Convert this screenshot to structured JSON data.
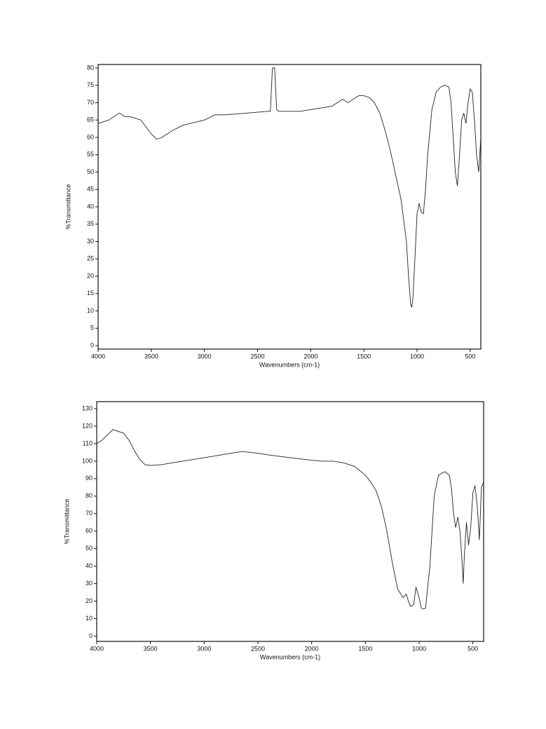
{
  "chart_data": [
    {
      "type": "line",
      "x_label": "Wavenumbers (cm-1)",
      "y_label": "%Transmittance",
      "xlim": [
        4000,
        400
      ],
      "ylim": [
        -1,
        81
      ],
      "xticks": [
        4000,
        3500,
        3000,
        2500,
        2000,
        1500,
        1000,
        500
      ],
      "yticks": [
        0,
        5,
        10,
        15,
        20,
        25,
        30,
        35,
        40,
        45,
        50,
        55,
        60,
        65,
        70,
        75,
        80
      ],
      "color": "#222222",
      "x": [
        4000,
        3900,
        3850,
        3800,
        3750,
        3700,
        3650,
        3600,
        3550,
        3500,
        3450,
        3400,
        3300,
        3200,
        3000,
        2900,
        2800,
        2600,
        2400,
        2380,
        2360,
        2340,
        2320,
        2300,
        2100,
        2000,
        1900,
        1800,
        1700,
        1650,
        1600,
        1550,
        1500,
        1450,
        1400,
        1350,
        1300,
        1250,
        1200,
        1150,
        1100,
        1080,
        1060,
        1050,
        1040,
        1020,
        1000,
        980,
        960,
        940,
        920,
        900,
        860,
        820,
        780,
        740,
        700,
        680,
        660,
        640,
        620,
        600,
        580,
        560,
        540,
        520,
        500,
        480,
        460,
        440,
        420,
        400
      ],
      "values": [
        64,
        65,
        66,
        67,
        66,
        66,
        65.5,
        65,
        63,
        61,
        59.5,
        60,
        62,
        63.5,
        65,
        66.5,
        66.5,
        67,
        67.5,
        67.5,
        80,
        80,
        68,
        67.5,
        67.5,
        68,
        68.5,
        69,
        71,
        70,
        71,
        72,
        72,
        71.5,
        70,
        67,
        62,
        56,
        49,
        42,
        30,
        20,
        12,
        11,
        13,
        25,
        38,
        41,
        38.5,
        38,
        45,
        55,
        68,
        73,
        74.5,
        75,
        74.5,
        70,
        60,
        50,
        46,
        55,
        65,
        67,
        64,
        70,
        74,
        73,
        65,
        55,
        50,
        60
      ]
    },
    {
      "type": "line",
      "x_label": "Wavenumbers (cm-1)",
      "y_label": "%Transmittance",
      "xlim": [
        4000,
        400
      ],
      "ylim": [
        -3,
        134
      ],
      "xticks": [
        4000,
        3500,
        3000,
        2500,
        2000,
        1500,
        1000,
        500
      ],
      "yticks": [
        0,
        10,
        20,
        30,
        40,
        50,
        60,
        70,
        80,
        90,
        100,
        110,
        120,
        130
      ],
      "color": "#222222",
      "x": [
        4000,
        3950,
        3900,
        3850,
        3800,
        3750,
        3700,
        3650,
        3600,
        3550,
        3500,
        3400,
        3200,
        3000,
        2800,
        2650,
        2500,
        2400,
        2200,
        2000,
        1900,
        1800,
        1700,
        1600,
        1500,
        1450,
        1400,
        1350,
        1300,
        1250,
        1200,
        1180,
        1150,
        1120,
        1100,
        1080,
        1050,
        1030,
        1000,
        980,
        960,
        940,
        900,
        860,
        820,
        760,
        720,
        700,
        680,
        660,
        640,
        620,
        600,
        590,
        580,
        560,
        540,
        520,
        500,
        480,
        460,
        440,
        420,
        400
      ],
      "values": [
        110,
        112,
        115,
        118,
        117,
        116,
        112,
        106,
        101,
        98,
        97.5,
        98,
        100,
        102,
        104,
        105.5,
        104.5,
        103.5,
        102,
        100.5,
        100,
        100,
        99,
        97,
        92,
        88,
        83,
        74,
        60,
        42,
        27,
        25,
        22,
        24,
        20,
        17,
        18,
        28,
        22,
        16,
        15.5,
        16,
        40,
        80,
        92,
        94,
        92,
        85,
        70,
        62,
        68,
        60,
        42,
        30,
        45,
        65,
        52,
        62,
        82,
        86,
        75,
        55,
        85,
        88
      ]
    }
  ]
}
